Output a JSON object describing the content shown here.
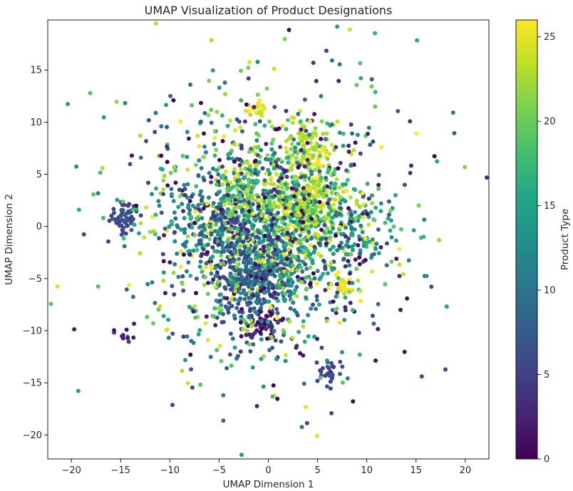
{
  "chart_data": {
    "type": "scatter",
    "title": "UMAP Visualization of Product Designations",
    "xlabel": "UMAP Dimension 1",
    "ylabel": "UMAP Dimension 2",
    "xlim": [
      -22.4,
      22.4
    ],
    "ylim": [
      -22.3,
      19.8
    ],
    "xticks": [
      -20,
      -15,
      -10,
      -5,
      0,
      5,
      10,
      15,
      20
    ],
    "xtick_labels": [
      "−20",
      "−15",
      "−10",
      "−5",
      "0",
      "5",
      "10",
      "15",
      "20"
    ],
    "yticks": [
      -20,
      -15,
      -10,
      -5,
      0,
      5,
      10,
      15
    ],
    "ytick_labels": [
      "−20",
      "−15",
      "−10",
      "−5",
      "0",
      "5",
      "10",
      "15"
    ],
    "grid": false,
    "colormap": "viridis",
    "colorbar": {
      "label": "Product Type",
      "range": [
        0,
        26
      ],
      "ticks": [
        0,
        5,
        10,
        15,
        20,
        25
      ],
      "tick_labels": [
        "0",
        "5",
        "10",
        "15",
        "20",
        "25"
      ]
    },
    "points_note_clusters": [
      {
        "x": -14.7,
        "y": 0.9,
        "color_value": 6,
        "n": 60,
        "spread": 0.7
      },
      {
        "x": 3.7,
        "y": 2.0,
        "color_value": 23,
        "n": 260,
        "spread": 2.0
      },
      {
        "x": -2.5,
        "y": 2.5,
        "color_value": 22,
        "n": 180,
        "spread": 2.6
      },
      {
        "x": -1.5,
        "y": -5.2,
        "color_value": 7,
        "n": 260,
        "spread": 2.1
      },
      {
        "x": 1.0,
        "y": -3.0,
        "color_value": 11,
        "n": 120,
        "spread": 2.4
      },
      {
        "x": 4.0,
        "y": 7.5,
        "color_value": 23,
        "n": 90,
        "spread": 1.3
      },
      {
        "x": -0.8,
        "y": 11.2,
        "color_value": 25,
        "n": 20,
        "spread": 0.5
      },
      {
        "x": 7.7,
        "y": -5.6,
        "color_value": 25,
        "n": 20,
        "spread": 0.5
      },
      {
        "x": 5.2,
        "y": 6.9,
        "color_value": 26,
        "n": 14,
        "spread": 0.4
      },
      {
        "x": 6.2,
        "y": -14.0,
        "color_value": 6,
        "n": 30,
        "spread": 0.6
      },
      {
        "x": -14.6,
        "y": -10.3,
        "color_value": 3,
        "n": 12,
        "spread": 0.5
      },
      {
        "x": -0.8,
        "y": -9.4,
        "color_value": 2,
        "n": 50,
        "spread": 0.8
      },
      {
        "x": 0.5,
        "y": -1.5,
        "color_value": 16,
        "n": 120,
        "spread": 2.8
      },
      {
        "x": 8.5,
        "y": -0.5,
        "color_value": 14,
        "n": 80,
        "spread": 2.0
      },
      {
        "x": -6.0,
        "y": 0.8,
        "color_value": 12,
        "n": 90,
        "spread": 2.2
      },
      {
        "x": -4.0,
        "y": -1.0,
        "color_value": 4,
        "n": 70,
        "spread": 1.8
      },
      {
        "x": 0.0,
        "y": 0.0,
        "color_value": 13,
        "n": 900,
        "spread": 5.8
      },
      {
        "x": 0.0,
        "y": 0.0,
        "color_value": 19,
        "n": 420,
        "spread": 8.0
      }
    ]
  }
}
